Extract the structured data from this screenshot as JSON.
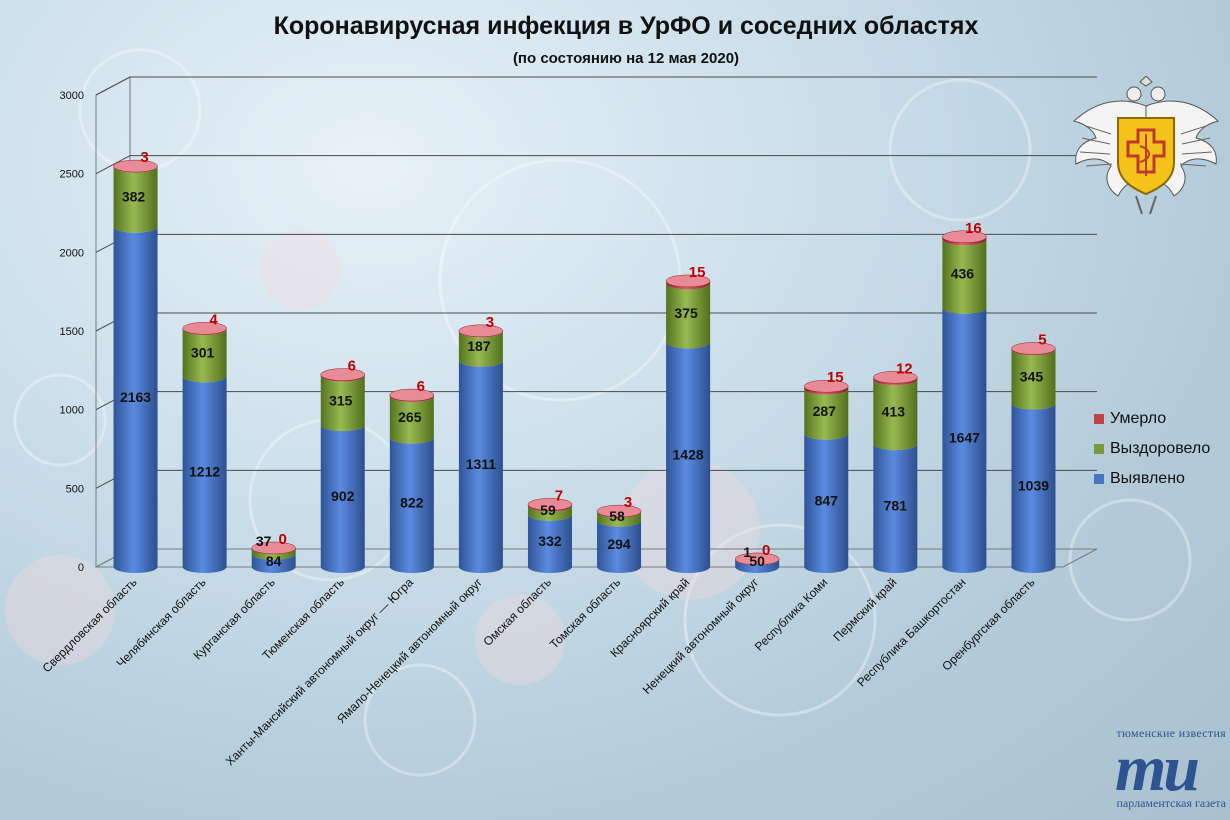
{
  "title": "Коронавирусная инфекция в УрФО и соседних областях",
  "subtitle": "(по состоянию на 12 мая 2020)",
  "legend": [
    {
      "label": "Умерло",
      "color": "#c0404a"
    },
    {
      "label": "Выздоровело",
      "color": "#7a9a3a"
    },
    {
      "label": "Выявлено",
      "color": "#4673c4"
    }
  ],
  "logo": {
    "top_text": "тюменские известия",
    "big_text": "ти",
    "bottom_text": "парламентская газета"
  },
  "emblem": "rospotrebnadzor-emblem",
  "colors": {
    "detected": "#4673c4",
    "recovered": "#7a9a3a",
    "died": "#c0404a",
    "died_label": "#c00000"
  },
  "chart_data": {
    "type": "bar",
    "stacked": true,
    "categories": [
      "Свердловская область",
      "Челябинская область",
      "Курганская область",
      "Тюменская область",
      "Ханты-Мансийский автономный округ — Югра",
      "Ямало-Ненецкий автономный округ",
      "Омская область",
      "Томская область",
      "Красноярский край",
      "Ненецкий автономный округ",
      "Республика Коми",
      "Пермский край",
      "Республика Башкортостан",
      "Оренбургская область"
    ],
    "series": [
      {
        "name": "Выявлено",
        "values": [
          2163,
          1212,
          84,
          902,
          822,
          1311,
          332,
          294,
          1428,
          50,
          847,
          781,
          1647,
          1039
        ]
      },
      {
        "name": "Выздоровело",
        "values": [
          382,
          301,
          37,
          315,
          265,
          187,
          59,
          58,
          375,
          1,
          287,
          413,
          436,
          345
        ]
      },
      {
        "name": "Умерло",
        "values": [
          3,
          4,
          0,
          6,
          6,
          3,
          7,
          3,
          15,
          0,
          15,
          12,
          16,
          5
        ]
      }
    ],
    "yticks": [
      0,
      500,
      1000,
      1500,
      2000,
      2500,
      3000
    ],
    "ylim": [
      0,
      3000
    ],
    "grid": true,
    "legend_position": "right"
  }
}
